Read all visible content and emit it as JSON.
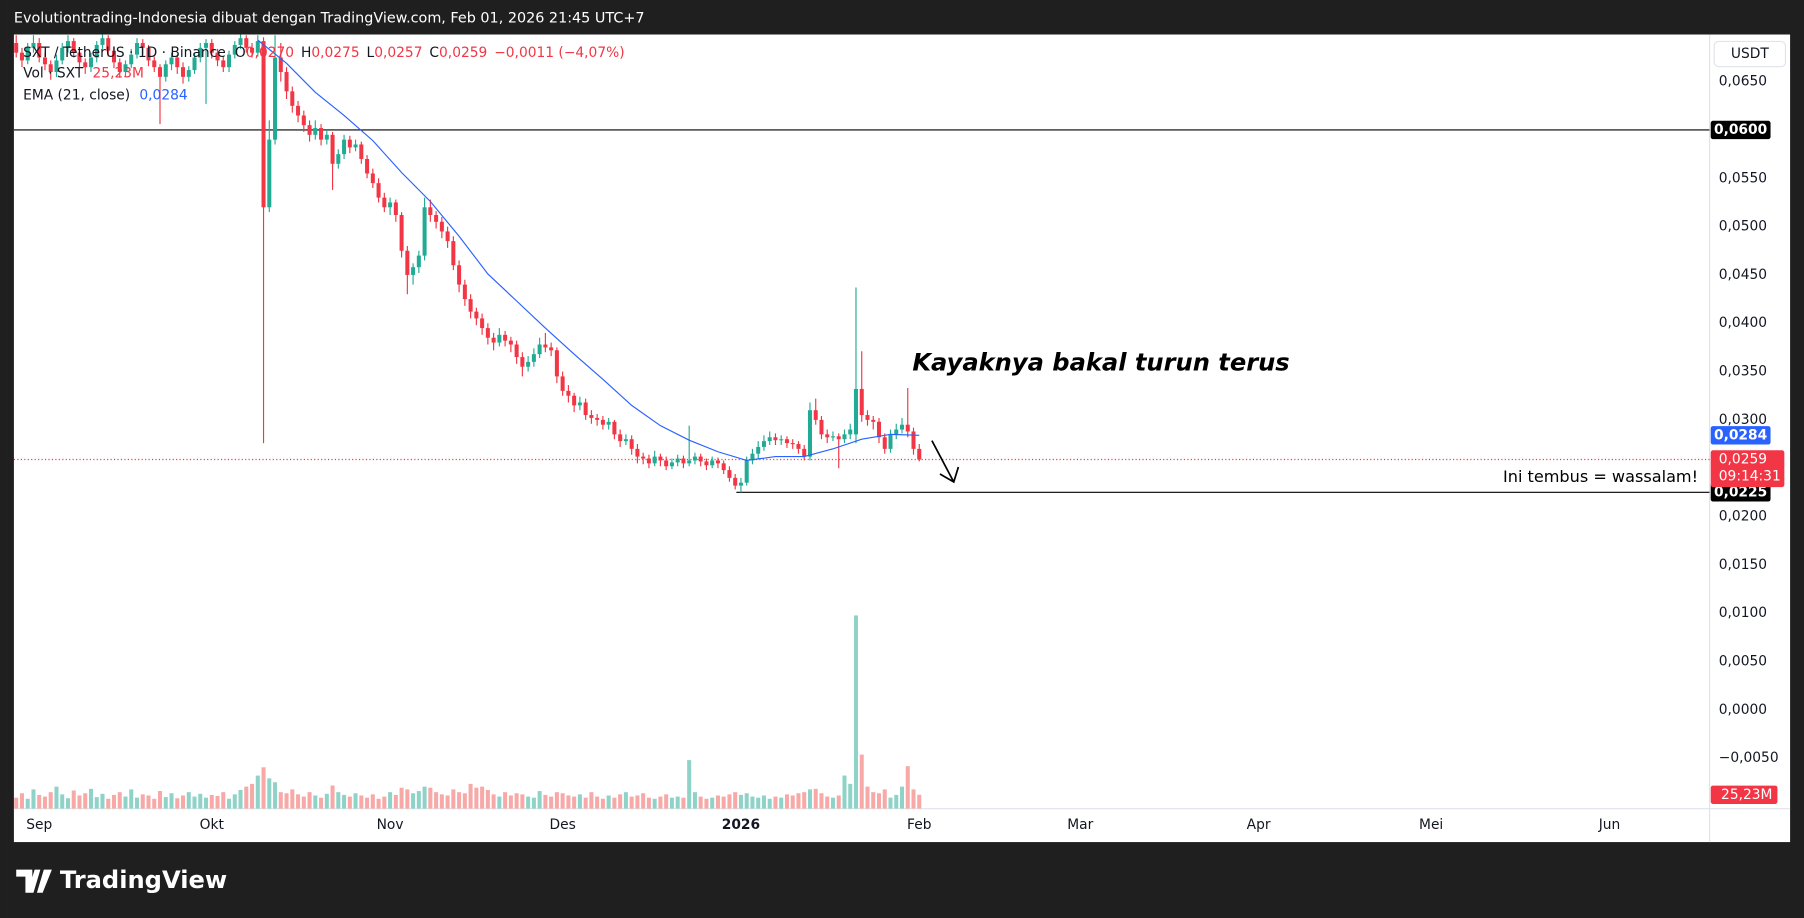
{
  "header": "Evolutiontrading-Indonesia dibuat dengan TradingView.com, Feb 01, 2026 21:45 UTC+7",
  "brand": "TradingView",
  "annotations": [
    "Kayaknya bakal turun terus",
    "Ini tembus = wassalam!"
  ],
  "chart_data": {
    "type": "candlestick",
    "symbol": "SXT / TetherUS · 1D · Binance",
    "ohlc_header": [
      {
        "key": "O",
        "value": "0,0270"
      },
      {
        "key": "H",
        "value": "0,0275"
      },
      {
        "key": "L",
        "value": "0,0257"
      },
      {
        "key": "C",
        "value": "0,0259"
      }
    ],
    "change": "−0,0011 (−4,07%)",
    "volume_title": "Vol · SXT",
    "volume_last": {
      "value": 25.23,
      "label": "25,23M"
    },
    "ema_title": "EMA (21, close)",
    "ema_last": {
      "value": 0.0284,
      "label": "0,0284"
    },
    "currency": "USDT",
    "last_price": {
      "value": 0.0259,
      "label": "0,0259"
    },
    "countdown": "09:14:31",
    "up_color": "#22ab94",
    "down_color": "#f23645",
    "volume_up_color": "#8fd3c8",
    "volume_down_color": "#f7a9a7",
    "x": [
      -4,
      -3,
      -2,
      -1,
      0,
      1,
      2,
      3,
      4,
      5,
      6,
      7,
      8,
      9,
      10,
      11,
      12,
      13,
      14,
      15,
      16,
      17,
      18,
      19,
      20,
      21,
      22,
      23,
      24,
      25,
      26,
      27,
      28,
      29,
      30,
      31,
      32,
      33,
      34,
      35,
      36,
      37,
      38,
      39,
      40,
      41,
      42,
      43,
      44,
      45,
      46,
      47,
      48,
      49,
      50,
      51,
      52,
      53,
      54,
      55,
      56,
      57,
      58,
      59,
      60,
      61,
      62,
      63,
      64,
      65,
      66,
      67,
      68,
      69,
      70,
      71,
      72,
      73,
      74,
      75,
      76,
      77,
      78,
      79,
      80,
      81,
      82,
      83,
      84,
      85,
      86,
      87,
      88,
      89,
      90,
      91,
      92,
      93,
      94,
      95,
      96,
      97,
      98,
      99,
      100,
      101,
      102,
      103,
      104,
      105,
      106,
      107,
      108,
      109,
      110,
      111,
      112,
      113,
      114,
      115,
      116,
      117,
      118,
      119,
      120,
      121,
      122,
      123,
      124,
      125,
      126,
      127,
      128,
      129,
      130,
      131,
      132,
      133,
      134,
      135,
      136,
      137,
      138,
      139,
      140,
      141,
      142,
      143,
      144,
      145,
      146,
      147,
      148,
      149,
      150,
      151,
      152,
      153
    ],
    "ohlc": [
      [
        0.069,
        0.0698,
        0.0675,
        0.068
      ],
      [
        0.068,
        0.0685,
        0.0665,
        0.0672
      ],
      [
        0.0672,
        0.069,
        0.0668,
        0.0685
      ],
      [
        0.0685,
        0.0698,
        0.068,
        0.069
      ],
      [
        0.069,
        0.0695,
        0.067,
        0.0675
      ],
      [
        0.0675,
        0.068,
        0.0662,
        0.0668
      ],
      [
        0.0668,
        0.0672,
        0.0652,
        0.066
      ],
      [
        0.066,
        0.0678,
        0.0655,
        0.0672
      ],
      [
        0.0672,
        0.069,
        0.0668,
        0.0685
      ],
      [
        0.0685,
        0.0698,
        0.068,
        0.0692
      ],
      [
        0.0692,
        0.0695,
        0.0675,
        0.068
      ],
      [
        0.068,
        0.0684,
        0.0664,
        0.067
      ],
      [
        0.067,
        0.0674,
        0.0658,
        0.0665
      ],
      [
        0.0665,
        0.068,
        0.066,
        0.0675
      ],
      [
        0.0675,
        0.0692,
        0.067,
        0.0688
      ],
      [
        0.0688,
        0.07,
        0.0684,
        0.0695
      ],
      [
        0.0695,
        0.0698,
        0.0676,
        0.0682
      ],
      [
        0.0682,
        0.0686,
        0.0664,
        0.067
      ],
      [
        0.067,
        0.0674,
        0.0654,
        0.066
      ],
      [
        0.066,
        0.0672,
        0.0655,
        0.0668
      ],
      [
        0.0668,
        0.0684,
        0.0664,
        0.0678
      ],
      [
        0.0678,
        0.0695,
        0.0674,
        0.069
      ],
      [
        0.069,
        0.0694,
        0.0678,
        0.0685
      ],
      [
        0.0685,
        0.0688,
        0.0666,
        0.0672
      ],
      [
        0.0672,
        0.0676,
        0.066,
        0.0665
      ],
      [
        0.0665,
        0.0668,
        0.0606,
        0.0655
      ],
      [
        0.0655,
        0.0672,
        0.065,
        0.0668
      ],
      [
        0.0668,
        0.068,
        0.0662,
        0.0675
      ],
      [
        0.0675,
        0.0678,
        0.0658,
        0.0665
      ],
      [
        0.0665,
        0.067,
        0.0648,
        0.0655
      ],
      [
        0.0655,
        0.0666,
        0.065,
        0.0662
      ],
      [
        0.0662,
        0.068,
        0.0658,
        0.0675
      ],
      [
        0.0675,
        0.069,
        0.067,
        0.0685
      ],
      [
        0.0685,
        0.0694,
        0.0627,
        0.069
      ],
      [
        0.069,
        0.0694,
        0.0674,
        0.068
      ],
      [
        0.068,
        0.0684,
        0.0666,
        0.0672
      ],
      [
        0.0672,
        0.0676,
        0.066,
        0.0665
      ],
      [
        0.0665,
        0.0682,
        0.066,
        0.0678
      ],
      [
        0.0678,
        0.0692,
        0.0674,
        0.0688
      ],
      [
        0.0688,
        0.07,
        0.0684,
        0.0695
      ],
      [
        0.0695,
        0.0698,
        0.068,
        0.0685
      ],
      [
        0.0685,
        0.069,
        0.0675,
        0.068
      ],
      [
        0.068,
        0.0698,
        0.0676,
        0.0692
      ],
      [
        0.0692,
        0.0696,
        0.0276,
        0.052
      ],
      [
        0.052,
        0.061,
        0.0515,
        0.059
      ],
      [
        0.059,
        0.0698,
        0.0585,
        0.0675
      ],
      [
        0.0675,
        0.069,
        0.065,
        0.066
      ],
      [
        0.066,
        0.0665,
        0.0632,
        0.064
      ],
      [
        0.064,
        0.0645,
        0.0618,
        0.0625
      ],
      [
        0.0625,
        0.063,
        0.0608,
        0.0615
      ],
      [
        0.0615,
        0.062,
        0.0598,
        0.0605
      ],
      [
        0.0605,
        0.061,
        0.0588,
        0.0595
      ],
      [
        0.0595,
        0.061,
        0.059,
        0.0602
      ],
      [
        0.0602,
        0.0606,
        0.0584,
        0.059
      ],
      [
        0.059,
        0.06,
        0.0585,
        0.0595
      ],
      [
        0.0595,
        0.0598,
        0.0538,
        0.0565
      ],
      [
        0.0565,
        0.058,
        0.056,
        0.0575
      ],
      [
        0.0575,
        0.0595,
        0.057,
        0.059
      ],
      [
        0.059,
        0.0594,
        0.0576,
        0.0582
      ],
      [
        0.0582,
        0.059,
        0.0578,
        0.0585
      ],
      [
        0.0585,
        0.0588,
        0.0565,
        0.057
      ],
      [
        0.057,
        0.0574,
        0.055,
        0.0555
      ],
      [
        0.0555,
        0.056,
        0.054,
        0.0545
      ],
      [
        0.0545,
        0.055,
        0.0525,
        0.053
      ],
      [
        0.053,
        0.0535,
        0.0515,
        0.052
      ],
      [
        0.052,
        0.053,
        0.0512,
        0.0525
      ],
      [
        0.0525,
        0.0528,
        0.0505,
        0.0512
      ],
      [
        0.0512,
        0.0515,
        0.0468,
        0.0475
      ],
      [
        0.0475,
        0.048,
        0.043,
        0.045
      ],
      [
        0.045,
        0.0462,
        0.044,
        0.0458
      ],
      [
        0.0458,
        0.0475,
        0.0452,
        0.047
      ],
      [
        0.047,
        0.053,
        0.0465,
        0.052
      ],
      [
        0.052,
        0.0528,
        0.0505,
        0.0512
      ],
      [
        0.0512,
        0.0516,
        0.0498,
        0.0505
      ],
      [
        0.0505,
        0.051,
        0.0488,
        0.0495
      ],
      [
        0.0495,
        0.05,
        0.0478,
        0.0485
      ],
      [
        0.0485,
        0.049,
        0.0455,
        0.046
      ],
      [
        0.046,
        0.0465,
        0.0432,
        0.044
      ],
      [
        0.044,
        0.0445,
        0.0418,
        0.0425
      ],
      [
        0.0425,
        0.043,
        0.0405,
        0.0412
      ],
      [
        0.0412,
        0.0416,
        0.0398,
        0.0405
      ],
      [
        0.0405,
        0.041,
        0.0388,
        0.0395
      ],
      [
        0.0395,
        0.04,
        0.0378,
        0.0385
      ],
      [
        0.0385,
        0.039,
        0.0372,
        0.038
      ],
      [
        0.038,
        0.0395,
        0.0376,
        0.0388
      ],
      [
        0.0388,
        0.0392,
        0.0376,
        0.0382
      ],
      [
        0.0382,
        0.0386,
        0.037,
        0.0378
      ],
      [
        0.0378,
        0.0382,
        0.0358,
        0.0365
      ],
      [
        0.0365,
        0.037,
        0.0345,
        0.0355
      ],
      [
        0.0355,
        0.0366,
        0.035,
        0.036
      ],
      [
        0.036,
        0.0374,
        0.0355,
        0.0368
      ],
      [
        0.0368,
        0.0385,
        0.0364,
        0.0378
      ],
      [
        0.0378,
        0.039,
        0.037,
        0.0375
      ],
      [
        0.0375,
        0.038,
        0.0366,
        0.0372
      ],
      [
        0.0372,
        0.0375,
        0.0338,
        0.0345
      ],
      [
        0.0345,
        0.035,
        0.0325,
        0.033
      ],
      [
        0.033,
        0.0336,
        0.0318,
        0.0325
      ],
      [
        0.0325,
        0.0328,
        0.0308,
        0.0315
      ],
      [
        0.0315,
        0.0324,
        0.031,
        0.0318
      ],
      [
        0.0318,
        0.0322,
        0.03,
        0.0305
      ],
      [
        0.0305,
        0.031,
        0.0296,
        0.0302
      ],
      [
        0.0302,
        0.0306,
        0.0294,
        0.03
      ],
      [
        0.03,
        0.0304,
        0.029,
        0.0295
      ],
      [
        0.0295,
        0.0302,
        0.029,
        0.0298
      ],
      [
        0.0298,
        0.03,
        0.028,
        0.0285
      ],
      [
        0.0285,
        0.029,
        0.0272,
        0.0278
      ],
      [
        0.0278,
        0.0285,
        0.0274,
        0.028
      ],
      [
        0.028,
        0.0284,
        0.0264,
        0.027
      ],
      [
        0.027,
        0.0275,
        0.0255,
        0.0262
      ],
      [
        0.0262,
        0.0266,
        0.0254,
        0.026
      ],
      [
        0.026,
        0.0264,
        0.025,
        0.0255
      ],
      [
        0.0255,
        0.0268,
        0.0252,
        0.0262
      ],
      [
        0.0262,
        0.0265,
        0.0252,
        0.0258
      ],
      [
        0.0258,
        0.0262,
        0.0248,
        0.0252
      ],
      [
        0.0252,
        0.026,
        0.0249,
        0.0256
      ],
      [
        0.0256,
        0.0264,
        0.0252,
        0.026
      ],
      [
        0.026,
        0.0263,
        0.025,
        0.0255
      ],
      [
        0.0255,
        0.0294,
        0.0252,
        0.0258
      ],
      [
        0.0258,
        0.0266,
        0.0254,
        0.0262
      ],
      [
        0.0262,
        0.0265,
        0.0252,
        0.0257
      ],
      [
        0.0257,
        0.026,
        0.0248,
        0.0253
      ],
      [
        0.0253,
        0.0262,
        0.025,
        0.0258
      ],
      [
        0.0258,
        0.0261,
        0.025,
        0.0255
      ],
      [
        0.0255,
        0.0258,
        0.0244,
        0.0248
      ],
      [
        0.0248,
        0.0252,
        0.0236,
        0.024
      ],
      [
        0.024,
        0.0244,
        0.0228,
        0.0232
      ],
      [
        0.0232,
        0.024,
        0.0225,
        0.0235
      ],
      [
        0.0235,
        0.0262,
        0.0232,
        0.0258
      ],
      [
        0.0258,
        0.027,
        0.0254,
        0.0265
      ],
      [
        0.0265,
        0.0278,
        0.026,
        0.0272
      ],
      [
        0.0272,
        0.0284,
        0.0268,
        0.0278
      ],
      [
        0.0278,
        0.0288,
        0.0274,
        0.0282
      ],
      [
        0.0282,
        0.0286,
        0.0274,
        0.0279
      ],
      [
        0.0279,
        0.0284,
        0.0274,
        0.028
      ],
      [
        0.028,
        0.0283,
        0.0271,
        0.0276
      ],
      [
        0.0276,
        0.028,
        0.027,
        0.0275
      ],
      [
        0.0275,
        0.0278,
        0.0265,
        0.027
      ],
      [
        0.027,
        0.0274,
        0.0258,
        0.0262
      ],
      [
        0.0262,
        0.0318,
        0.0258,
        0.031
      ],
      [
        0.031,
        0.0322,
        0.0295,
        0.03
      ],
      [
        0.03,
        0.0304,
        0.028,
        0.0285
      ],
      [
        0.0285,
        0.029,
        0.0276,
        0.0282
      ],
      [
        0.0282,
        0.0288,
        0.0278,
        0.0283
      ],
      [
        0.0283,
        0.0286,
        0.025,
        0.028
      ],
      [
        0.028,
        0.029,
        0.0276,
        0.0285
      ],
      [
        0.0285,
        0.0296,
        0.028,
        0.029
      ],
      [
        0.0285,
        0.0437,
        0.0276,
        0.0332
      ],
      [
        0.0332,
        0.0371,
        0.0298,
        0.0305
      ],
      [
        0.0305,
        0.031,
        0.0294,
        0.03
      ],
      [
        0.03,
        0.0304,
        0.029,
        0.0298
      ],
      [
        0.0298,
        0.0302,
        0.0276,
        0.0282
      ],
      [
        0.0282,
        0.0286,
        0.0265,
        0.027
      ],
      [
        0.027,
        0.029,
        0.0266,
        0.0285
      ],
      [
        0.0285,
        0.0296,
        0.028,
        0.029
      ],
      [
        0.029,
        0.0302,
        0.0286,
        0.0295
      ],
      [
        0.0295,
        0.0333,
        0.0282,
        0.0288
      ],
      [
        0.0288,
        0.0292,
        0.0264,
        0.027
      ],
      [
        0.027,
        0.0275,
        0.0257,
        0.0259
      ]
    ],
    "volume": [
      20,
      28,
      18,
      35,
      25,
      22,
      30,
      40,
      26,
      19,
      33,
      24,
      28,
      36,
      21,
      27,
      18,
      25,
      30,
      22,
      35,
      20,
      26,
      24,
      18,
      32,
      21,
      28,
      19,
      24,
      30,
      22,
      27,
      20,
      25,
      23,
      30,
      18,
      26,
      34,
      40,
      45,
      60,
      75,
      55,
      48,
      30,
      28,
      35,
      26,
      22,
      30,
      24,
      20,
      27,
      42,
      30,
      25,
      22,
      28,
      24,
      20,
      26,
      18,
      22,
      30,
      25,
      38,
      35,
      28,
      32,
      40,
      38,
      30,
      26,
      24,
      35,
      30,
      28,
      45,
      38,
      40,
      34,
      26,
      22,
      30,
      24,
      28,
      26,
      22,
      20,
      32,
      25,
      22,
      30,
      28,
      24,
      22,
      26,
      20,
      30,
      22,
      18,
      24,
      20,
      26,
      30,
      22,
      24,
      28,
      20,
      18,
      22,
      26,
      20,
      22,
      20,
      88,
      30,
      22,
      18,
      20,
      24,
      22,
      26,
      30,
      25,
      28,
      22,
      20,
      24,
      18,
      22,
      20,
      26,
      24,
      28,
      30,
      35,
      36,
      28,
      22,
      20,
      24,
      60,
      45,
      350,
      98,
      40,
      30,
      28,
      35,
      20,
      25,
      40,
      77,
      35,
      25.23
    ],
    "ema": {
      "x": [
        38,
        43,
        48,
        53,
        58,
        63,
        68,
        73,
        78,
        83,
        88,
        93,
        98,
        103,
        108,
        113,
        118,
        123,
        128,
        133,
        138,
        143,
        148,
        153
      ],
      "values": [
        0.0693,
        0.0669,
        0.0639,
        0.0615,
        0.0589,
        0.0556,
        0.0526,
        0.049,
        0.0451,
        0.0423,
        0.0395,
        0.0368,
        0.0342,
        0.0315,
        0.0294,
        0.0279,
        0.0267,
        0.0258,
        0.0262,
        0.0262,
        0.027,
        0.028,
        0.0285,
        0.0284
      ],
      "color": "#2962ff"
    },
    "levels": [
      {
        "value": 0.06,
        "label": "0,0600"
      },
      {
        "value": 0.0225,
        "label": "0,0225",
        "from": 121.2
      }
    ],
    "xlim": [
      -4.4,
      290.4
    ],
    "ylim": [
      -0.01024,
      0.06988
    ],
    "xticks": [
      {
        "value": 0,
        "label": "Sep"
      },
      {
        "value": 30,
        "label": "Okt"
      },
      {
        "value": 61,
        "label": "Nov"
      },
      {
        "value": 91,
        "label": "Des"
      },
      {
        "value": 122,
        "label": "2026"
      },
      {
        "value": 153,
        "label": "Feb"
      },
      {
        "value": 181,
        "label": "Mar"
      },
      {
        "value": 212,
        "label": "Apr"
      },
      {
        "value": 242,
        "label": "Mei"
      },
      {
        "value": 273,
        "label": "Jun"
      }
    ],
    "yticks": [
      {
        "value": 0.065,
        "label": "0,0650"
      },
      {
        "value": 0.055,
        "label": "0,0550"
      },
      {
        "value": 0.05,
        "label": "0,0500"
      },
      {
        "value": 0.045,
        "label": "0,0450"
      },
      {
        "value": 0.04,
        "label": "0,0400"
      },
      {
        "value": 0.035,
        "label": "0,0350"
      },
      {
        "value": 0.03,
        "label": "0,0300"
      },
      {
        "value": 0.02,
        "label": "0,0200"
      },
      {
        "value": 0.015,
        "label": "0,0150"
      },
      {
        "value": 0.01,
        "label": "0,0100"
      },
      {
        "value": 0.005,
        "label": "0,0050"
      },
      {
        "value": 0,
        "label": "0,0000"
      },
      {
        "value": -0.005,
        "label": "−0,0050"
      }
    ]
  }
}
